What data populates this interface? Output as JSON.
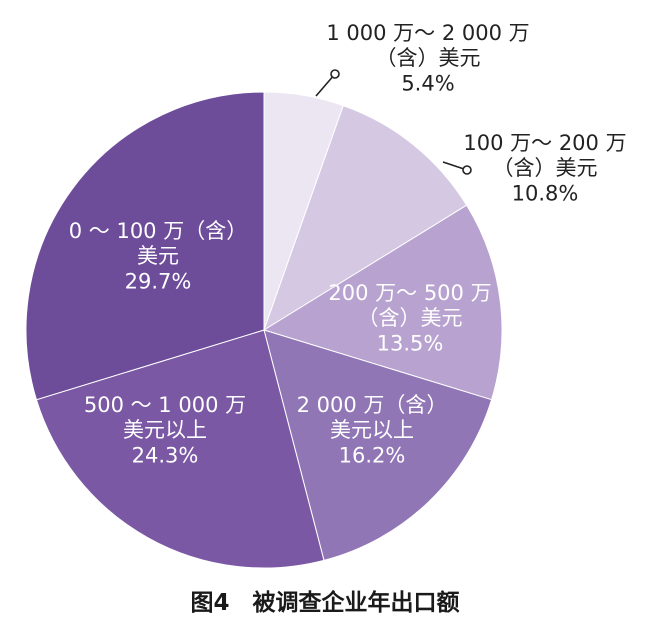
{
  "chart_data": {
    "type": "pie",
    "title": "图4　被调查企业年出口额",
    "slices": [
      {
        "label_lines": [
          "1 000 万～ 2 000 万",
          "（含）美元"
        ],
        "pct_text": "5.4%",
        "value": 5.4,
        "color": "#ece6f2",
        "label_color": "#222222"
      },
      {
        "label_lines": [
          "100 万～ 200 万",
          "（含）美元"
        ],
        "pct_text": "10.8%",
        "value": 10.8,
        "color": "#d5c8e3",
        "label_color": "#222222"
      },
      {
        "label_lines": [
          "200 万～ 500 万",
          "（含）美元"
        ],
        "pct_text": "13.5%",
        "value": 13.5,
        "color": "#b8a2d0",
        "label_color": "#ffffff"
      },
      {
        "label_lines": [
          "2 000 万（含）",
          "美元以上"
        ],
        "pct_text": "16.2%",
        "value": 16.2,
        "color": "#9176b6",
        "label_color": "#ffffff"
      },
      {
        "label_lines": [
          "500 ～ 1 000 万",
          "美元以上"
        ],
        "pct_text": "24.3%",
        "value": 24.3,
        "color": "#7a58a4",
        "label_color": "#ffffff"
      },
      {
        "label_lines": [
          "0 ～ 100 万（含）",
          "美元"
        ],
        "pct_text": "29.7%",
        "value": 29.7,
        "color": "#6d4c9a",
        "label_color": "#ffffff"
      }
    ]
  }
}
